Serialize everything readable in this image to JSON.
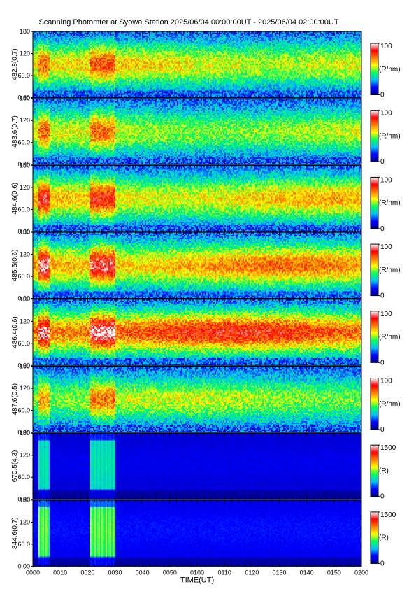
{
  "title": "Scanning Photomter at Syowa Station 2025/06/04 00:00:00UT - 2025/06/04 02:00:00UT",
  "chart_data": {
    "type": "heatmap",
    "xlabel": "TIME(UT)",
    "x_ticks": [
      "0000",
      "0010",
      "0020",
      "0030",
      "0040",
      "0050",
      "0100",
      "0110",
      "0120",
      "0130",
      "0140",
      "0150",
      "0200"
    ],
    "y_ticks": [
      "0.00",
      "60.0",
      "120",
      "180"
    ],
    "ylim": [
      0,
      180
    ],
    "colormap": [
      "#000080",
      "#0000ff",
      "#00c0ff",
      "#00ff60",
      "#ffff00",
      "#ff8000",
      "#ff0000",
      "#ffffff"
    ],
    "panels": [
      {
        "ylabel": "482.8(0.7)",
        "cbar_max": "100",
        "cbar_min": "0",
        "cbar_unit": "(R/nm)",
        "base_level": 0.38,
        "band_boost": 0.15
      },
      {
        "ylabel": "483.6(0.7)",
        "cbar_max": "100",
        "cbar_min": "0",
        "cbar_unit": "(R/nm)",
        "base_level": 0.33,
        "band_boost": 0.18
      },
      {
        "ylabel": "484.6(0.6)",
        "cbar_max": "100",
        "cbar_min": "0",
        "cbar_unit": "(R/nm)",
        "base_level": 0.42,
        "band_boost": 0.22
      },
      {
        "ylabel": "485.5(0.6)",
        "cbar_max": "100",
        "cbar_min": "0",
        "cbar_unit": "(R/nm)",
        "base_level": 0.48,
        "band_boost": 0.28
      },
      {
        "ylabel": "486.4(0.6)",
        "cbar_max": "100",
        "cbar_min": "0",
        "cbar_unit": "(R/nm)",
        "base_level": 0.58,
        "band_boost": 0.25
      },
      {
        "ylabel": "487.6(0.5)",
        "cbar_max": "100",
        "cbar_min": "0",
        "cbar_unit": "(R/nm)",
        "base_level": 0.32,
        "band_boost": 0.2
      },
      {
        "ylabel": "670.5(4.3)",
        "cbar_max": "1500",
        "cbar_min": "0",
        "cbar_unit": "(R)",
        "base_level": 0.16,
        "band_boost": 0.3
      },
      {
        "ylabel": "844.6(0.7)",
        "cbar_max": "1500",
        "cbar_min": "0",
        "cbar_unit": "(R)",
        "base_level": 0.2,
        "band_boost": 0.4
      }
    ],
    "enhancement_intervals_ut_minutes": [
      [
        2,
        6
      ],
      [
        21,
        30
      ]
    ]
  }
}
